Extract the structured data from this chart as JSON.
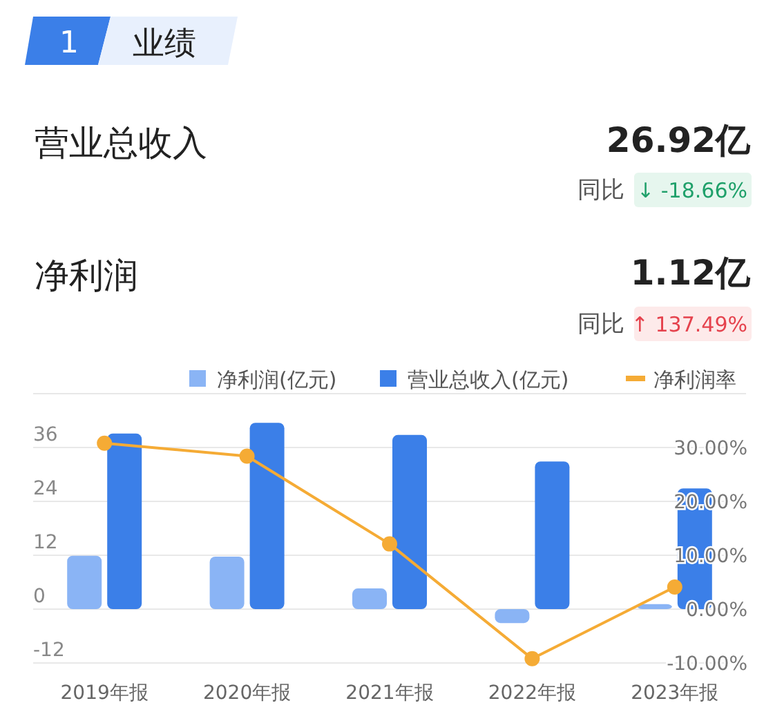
{
  "chart_data": {
    "type": "bar",
    "title": "业绩",
    "annotations": [
      "1",
      "营业总收入",
      "26.92亿",
      "同比",
      "↓ -18.66%",
      "净利润",
      "1.12亿",
      "同比",
      "↑ 137.49%"
    ],
    "categories": [
      "2019年报",
      "2020年报",
      "2021年报",
      "2022年报",
      "2023年报"
    ],
    "series": [
      {
        "name": "净利润(亿元)",
        "color": "#8ab4f5",
        "values": [
          11.9,
          11.7,
          4.6,
          -3.1,
          1.1
        ]
      },
      {
        "name": "营业总收入(亿元)",
        "color": "#3b7fe8",
        "values": [
          39.1,
          41.5,
          38.8,
          32.9,
          26.9
        ]
      },
      {
        "name": "净利润率",
        "type": "line",
        "axis": "y2",
        "color": "#f5ab35",
        "marker": "circle",
        "values": [
          30.8,
          28.4,
          12.1,
          -9.2,
          4.1
        ]
      }
    ],
    "ylim": [
      -12,
      48
    ],
    "yticks": [
      -12,
      0,
      12,
      24,
      36,
      {
        "value": 48,
        "label": null
      }
    ],
    "y2lim": [
      -10,
      40
    ],
    "y2ticks": [
      {
        "value": -10,
        "label": "-10.00%"
      },
      {
        "value": 0,
        "label": "0.00%"
      },
      {
        "value": 10,
        "label": "10.00%"
      },
      {
        "value": 20,
        "label": "20.00%"
      },
      {
        "value": 30,
        "label": "30.00%"
      },
      {
        "value": 40,
        "label": null
      }
    ],
    "grid": "y",
    "legend": "top"
  }
}
